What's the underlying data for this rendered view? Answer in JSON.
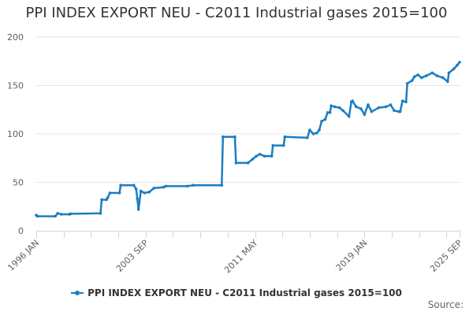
{
  "chart_data": {
    "type": "line",
    "title": "PPI INDEX EXPORT NEU - C2011 Industrial gases 2015=100",
    "xlabel": "",
    "ylabel": "",
    "ylim": [
      0,
      200
    ],
    "yticks": [
      0,
      50,
      100,
      150,
      200
    ],
    "x_tick_labels": [
      {
        "label": "1996 JAN",
        "month_index": 0
      },
      {
        "label": "2003 SEP",
        "month_index": 92
      },
      {
        "label": "2011 MAY",
        "month_index": 184
      },
      {
        "label": "2019 JAN",
        "month_index": 276
      },
      {
        "label": "2025 SEP",
        "month_index": 356
      }
    ],
    "x_minor_tick_month_indexes": [
      0,
      23,
      46,
      69,
      92,
      115,
      138,
      161,
      184,
      207,
      230,
      253,
      276,
      299,
      322,
      345,
      356
    ],
    "x_range_months": [
      0,
      356
    ],
    "x_month_index_origin": "1996 JAN",
    "grid": {
      "horizontal": true,
      "vertical": false
    },
    "legend_position": "bottom",
    "series": [
      {
        "name": "PPI INDEX EXPORT NEU - C2011 Industrial gases 2015=100",
        "color": "#1a7ec1",
        "points": [
          [
            0,
            16
          ],
          [
            1,
            15
          ],
          [
            16,
            15
          ],
          [
            18,
            18
          ],
          [
            21,
            17
          ],
          [
            28,
            17
          ],
          [
            29,
            17.5
          ],
          [
            54,
            18
          ],
          [
            55,
            32
          ],
          [
            59,
            32
          ],
          [
            60,
            34
          ],
          [
            62,
            39
          ],
          [
            70,
            39
          ],
          [
            71,
            47
          ],
          [
            82,
            47
          ],
          [
            84,
            43
          ],
          [
            85,
            33
          ],
          [
            86,
            22
          ],
          [
            88,
            41
          ],
          [
            91,
            39
          ],
          [
            95,
            40
          ],
          [
            99,
            44
          ],
          [
            107,
            45
          ],
          [
            109,
            46
          ],
          [
            127,
            46
          ],
          [
            132,
            47
          ],
          [
            156,
            47
          ],
          [
            157,
            97
          ],
          [
            167,
            97
          ],
          [
            168,
            70
          ],
          [
            178,
            70
          ],
          [
            182,
            74
          ],
          [
            185,
            77
          ],
          [
            188,
            79
          ],
          [
            192,
            77
          ],
          [
            198,
            77
          ],
          [
            199,
            88
          ],
          [
            208,
            88
          ],
          [
            209,
            97
          ],
          [
            228,
            96
          ],
          [
            230,
            104
          ],
          [
            233,
            100
          ],
          [
            236,
            101
          ],
          [
            238,
            104
          ],
          [
            240,
            113
          ],
          [
            243,
            115
          ],
          [
            245,
            122
          ],
          [
            247,
            122
          ],
          [
            248,
            129
          ],
          [
            251,
            128
          ],
          [
            255,
            127
          ],
          [
            258,
            124
          ],
          [
            263,
            118
          ],
          [
            265,
            133
          ],
          [
            266,
            134
          ],
          [
            269,
            128
          ],
          [
            273,
            126
          ],
          [
            276,
            120
          ],
          [
            279,
            130
          ],
          [
            282,
            123
          ],
          [
            288,
            127
          ],
          [
            294,
            128
          ],
          [
            298,
            130
          ],
          [
            301,
            124
          ],
          [
            305,
            123
          ],
          [
            306,
            123
          ],
          [
            308,
            134
          ],
          [
            311,
            133
          ],
          [
            312,
            152
          ],
          [
            316,
            155
          ],
          [
            318,
            159
          ],
          [
            321,
            161
          ],
          [
            324,
            158
          ],
          [
            328,
            160
          ],
          [
            333,
            163
          ],
          [
            337,
            160
          ],
          [
            342,
            158
          ],
          [
            346,
            154
          ],
          [
            347,
            163
          ],
          [
            351,
            167
          ],
          [
            354,
            171
          ],
          [
            356,
            174
          ]
        ]
      }
    ]
  },
  "legend": {
    "label": "PPI INDEX EXPORT NEU - C2011 Industrial gases 2015=100"
  },
  "footer": {
    "source": "Source:"
  }
}
